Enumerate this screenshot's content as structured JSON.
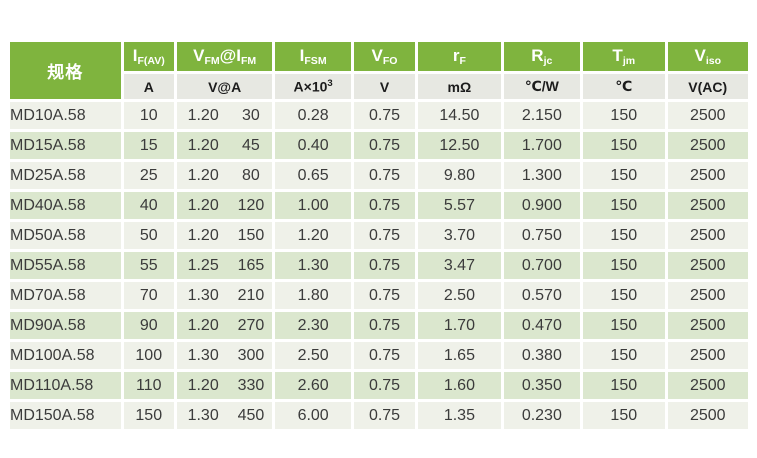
{
  "colors": {
    "header_green": "#7fb43e",
    "header_text": "#ffffff",
    "unit_row_bg": "#e7e8e2",
    "row_pale": "#eff1e9",
    "row_green": "#dbe7ce",
    "data_text": "#3b3b3b",
    "separator": "#ffffff"
  },
  "table": {
    "spec_header": "规格",
    "columns": [
      {
        "id": "if_av",
        "width": 50,
        "header": [
          {
            "t": "I"
          },
          {
            "t": "F(AV)",
            "sub": true
          }
        ],
        "unit": [
          {
            "t": "A"
          }
        ]
      },
      {
        "id": "vfm",
        "width": 95,
        "split": true,
        "header": [
          {
            "t": "V"
          },
          {
            "t": "FM",
            "sub": true
          },
          {
            "t": "@"
          },
          {
            "t": "I"
          },
          {
            "t": "FM",
            "sub": true
          }
        ],
        "unit": [
          {
            "t": "V@A"
          }
        ]
      },
      {
        "id": "ifsm",
        "width": 75,
        "header": [
          {
            "t": "I"
          },
          {
            "t": "FSM",
            "sub": true
          }
        ],
        "unit": [
          {
            "t": "A×10"
          },
          {
            "t": "3",
            "sup": true
          }
        ]
      },
      {
        "id": "vfo",
        "width": 61,
        "header": [
          {
            "t": "V"
          },
          {
            "t": "FO",
            "sub": true
          }
        ],
        "unit": [
          {
            "t": "V"
          }
        ]
      },
      {
        "id": "rf",
        "width": 82,
        "header": [
          {
            "t": "r"
          },
          {
            "t": "F",
            "sub": true
          }
        ],
        "unit": [
          {
            "t": "mΩ"
          }
        ]
      },
      {
        "id": "rjc",
        "width": 76,
        "header": [
          {
            "t": "R"
          },
          {
            "t": "jc",
            "sub": true
          }
        ],
        "unit": [
          {
            "t": "℃/W"
          }
        ]
      },
      {
        "id": "tjm",
        "width": 81,
        "header": [
          {
            "t": "T"
          },
          {
            "t": "jm",
            "sub": true
          }
        ],
        "unit": [
          {
            "t": "℃"
          }
        ]
      },
      {
        "id": "viso",
        "width": 80,
        "header": [
          {
            "t": "V"
          },
          {
            "t": "iso",
            "sub": true
          }
        ],
        "unit": [
          {
            "t": "V(AC)"
          }
        ]
      }
    ],
    "spec_col_width": 110,
    "rows": [
      {
        "spec": "MD10A.58",
        "if_av": "10",
        "vfm": "1.20",
        "ifm": "30",
        "ifsm": "0.28",
        "vfo": "0.75",
        "rf": "14.50",
        "rjc": "2.150",
        "tjm": "150",
        "viso": "2500"
      },
      {
        "spec": "MD15A.58",
        "if_av": "15",
        "vfm": "1.20",
        "ifm": "45",
        "ifsm": "0.40",
        "vfo": "0.75",
        "rf": "12.50",
        "rjc": "1.700",
        "tjm": "150",
        "viso": "2500"
      },
      {
        "spec": "MD25A.58",
        "if_av": "25",
        "vfm": "1.20",
        "ifm": "80",
        "ifsm": "0.65",
        "vfo": "0.75",
        "rf": "9.80",
        "rjc": "1.300",
        "tjm": "150",
        "viso": "2500"
      },
      {
        "spec": "MD40A.58",
        "if_av": "40",
        "vfm": "1.20",
        "ifm": "120",
        "ifsm": "1.00",
        "vfo": "0.75",
        "rf": "5.57",
        "rjc": "0.900",
        "tjm": "150",
        "viso": "2500"
      },
      {
        "spec": "MD50A.58",
        "if_av": "50",
        "vfm": "1.20",
        "ifm": "150",
        "ifsm": "1.20",
        "vfo": "0.75",
        "rf": "3.70",
        "rjc": "0.750",
        "tjm": "150",
        "viso": "2500"
      },
      {
        "spec": "MD55A.58",
        "if_av": "55",
        "vfm": "1.25",
        "ifm": "165",
        "ifsm": "1.30",
        "vfo": "0.75",
        "rf": "3.47",
        "rjc": "0.700",
        "tjm": "150",
        "viso": "2500"
      },
      {
        "spec": "MD70A.58",
        "if_av": "70",
        "vfm": "1.30",
        "ifm": "210",
        "ifsm": "1.80",
        "vfo": "0.75",
        "rf": "2.50",
        "rjc": "0.570",
        "tjm": "150",
        "viso": "2500"
      },
      {
        "spec": "MD90A.58",
        "if_av": "90",
        "vfm": "1.20",
        "ifm": "270",
        "ifsm": "2.30",
        "vfo": "0.75",
        "rf": "1.70",
        "rjc": "0.470",
        "tjm": "150",
        "viso": "2500"
      },
      {
        "spec": "MD100A.58",
        "if_av": "100",
        "vfm": "1.30",
        "ifm": "300",
        "ifsm": "2.50",
        "vfo": "0.75",
        "rf": "1.65",
        "rjc": "0.380",
        "tjm": "150",
        "viso": "2500"
      },
      {
        "spec": "MD110A.58",
        "if_av": "110",
        "vfm": "1.20",
        "ifm": "330",
        "ifsm": "2.60",
        "vfo": "0.75",
        "rf": "1.60",
        "rjc": "0.350",
        "tjm": "150",
        "viso": "2500"
      },
      {
        "spec": "MD150A.58",
        "if_av": "150",
        "vfm": "1.30",
        "ifm": "450",
        "ifsm": "6.00",
        "vfo": "0.75",
        "rf": "1.35",
        "rjc": "0.230",
        "tjm": "150",
        "viso": "2500"
      }
    ]
  }
}
